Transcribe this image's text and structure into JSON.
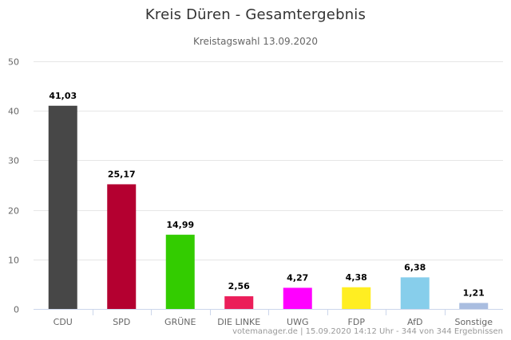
{
  "chart_data": {
    "type": "bar",
    "title": "Kreis Düren - Gesamtergebnis",
    "subtitle": "Kreistagswahl 13.09.2020",
    "categories": [
      "CDU",
      "SPD",
      "GRÜNE",
      "DIE LINKE",
      "UWG",
      "FDP",
      "AfD",
      "Sonstige"
    ],
    "values": [
      41.03,
      25.17,
      14.99,
      2.56,
      4.27,
      4.38,
      6.38,
      1.21
    ],
    "data_labels": [
      "41,03",
      "25,17",
      "14,99",
      "2,56",
      "4,27",
      "4,38",
      "6,38",
      "1,21"
    ],
    "colors": [
      "#474747",
      "#b40030",
      "#33cc00",
      "#eb1e5a",
      "#ff00ff",
      "#ffee22",
      "#87ceeb",
      "#a9bde0"
    ],
    "ylim": [
      0,
      50
    ],
    "yticks": [
      0,
      10,
      20,
      30,
      40,
      50
    ],
    "grid": true,
    "credits": "votemanager.de | 15.09.2020 14:12 Uhr - 344 von 344 Ergebnissen"
  }
}
